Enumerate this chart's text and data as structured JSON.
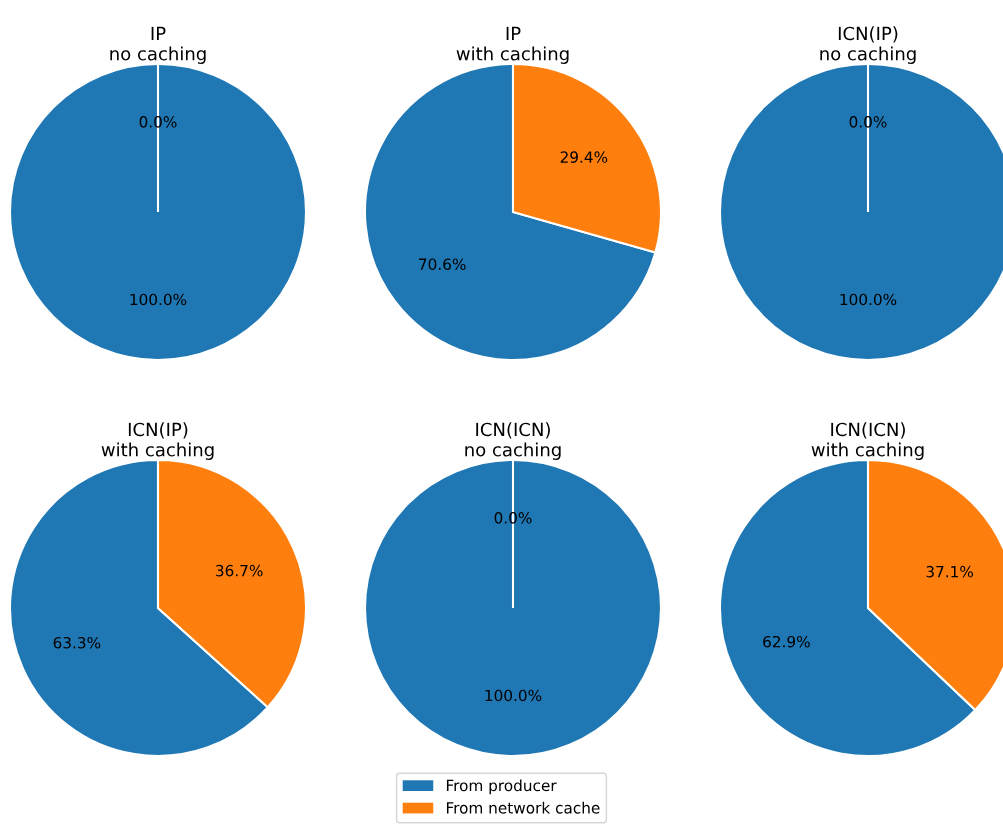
{
  "chart_data": [
    {
      "type": "pie",
      "title": "IP\nno caching",
      "categories": [
        "From producer",
        "From network cache"
      ],
      "values": [
        100.0,
        0.0
      ],
      "colors": [
        "#1f77b4",
        "#ff7f0e"
      ],
      "value_labels": [
        "100.0%",
        "0.0%"
      ],
      "legend": "bottom"
    },
    {
      "type": "pie",
      "title": "IP\nwith caching",
      "categories": [
        null,
        null
      ],
      "values": [
        70.6,
        29.4
      ],
      "colors": [
        "#1f77b4",
        "#ff7f0e"
      ],
      "value_labels": [
        "70.6%",
        "29.4%"
      ]
    },
    {
      "type": "pie",
      "title": "ICN(IP)\nno caching",
      "categories": [
        null,
        null
      ],
      "values": [
        100.0,
        0.0
      ],
      "colors": [
        "#1f77b4",
        "#ff7f0e"
      ],
      "value_labels": [
        "100.0%",
        "0.0%"
      ]
    },
    {
      "type": "pie",
      "title": "ICN(IP)\nwith caching",
      "categories": [
        null,
        null
      ],
      "values": [
        63.3,
        36.7
      ],
      "colors": [
        "#1f77b4",
        "#ff7f0e"
      ],
      "value_labels": [
        "63.3%",
        "36.7%"
      ]
    },
    {
      "type": "pie",
      "title": "ICN(ICN)\nno caching",
      "categories": [
        null,
        null
      ],
      "values": [
        100.0,
        0.0
      ],
      "colors": [
        "#1f77b4",
        "#ff7f0e"
      ],
      "value_labels": [
        "100.0%",
        "0.0%"
      ]
    },
    {
      "type": "pie",
      "title": "ICN(ICN)\nwith caching",
      "categories": [
        null,
        null
      ],
      "values": [
        62.9,
        37.1
      ],
      "colors": [
        "#1f77b4",
        "#ff7f0e"
      ],
      "value_labels": [
        "62.9%",
        "37.1%"
      ]
    }
  ]
}
